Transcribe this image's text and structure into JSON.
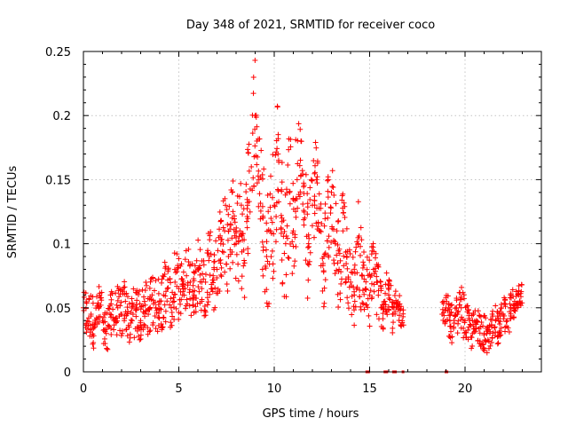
{
  "chart_data": {
    "type": "scatter",
    "title": "Day 348 of 2021, SRMTID for receiver coco",
    "xlabel": "GPS time / hours",
    "ylabel": "SRMTID / TECUs",
    "xlim": [
      0,
      24
    ],
    "ylim": [
      0,
      0.25
    ],
    "x_ticks": [
      0,
      5,
      10,
      15,
      20
    ],
    "x_tick_labels": [
      "0",
      "5",
      "10",
      "15",
      "20"
    ],
    "y_ticks": [
      0,
      0.05,
      0.1,
      0.15,
      0.2,
      0.25
    ],
    "y_tick_labels": [
      "0",
      "0.05",
      "0.1",
      "0.15",
      "0.2",
      "0.25"
    ],
    "grid": true,
    "marker": "plus",
    "color": "#ff0000",
    "series": [
      {
        "name": "SRMTID",
        "x": [
          0.0,
          0.2,
          0.4,
          0.6,
          0.8,
          1.0,
          1.2,
          1.4,
          1.6,
          1.8,
          2.0,
          2.2,
          2.4,
          2.6,
          2.8,
          3.0,
          3.2,
          3.4,
          3.6,
          3.8,
          4.0,
          4.2,
          4.4,
          4.6,
          4.8,
          5.0,
          5.2,
          5.4,
          5.6,
          5.8,
          6.0,
          6.2,
          6.4,
          6.6,
          6.8,
          7.0,
          7.2,
          7.4,
          7.6,
          7.8,
          8.0,
          8.2,
          8.4,
          8.6,
          8.8,
          9.0,
          9.2,
          9.4,
          9.6,
          9.8,
          10.0,
          10.2,
          10.4,
          10.6,
          10.8,
          11.0,
          11.2,
          11.4,
          11.6,
          11.8,
          12.0,
          12.2,
          12.4,
          12.6,
          12.8,
          13.0,
          13.2,
          13.4,
          13.6,
          13.8,
          14.0,
          14.2,
          14.4,
          14.6,
          14.8,
          15.0,
          15.2,
          15.4,
          15.6,
          15.8,
          16.0,
          16.2,
          16.4,
          16.6,
          18.8,
          19.0,
          19.2,
          19.4,
          19.6,
          19.8,
          20.0,
          20.2,
          20.4,
          20.6,
          20.8,
          21.0,
          21.2,
          21.4,
          21.6,
          21.8,
          22.0,
          22.2,
          22.4,
          22.6,
          22.8
        ],
        "y": [
          0.05,
          0.04,
          0.045,
          0.035,
          0.05,
          0.04,
          0.03,
          0.045,
          0.04,
          0.05,
          0.045,
          0.055,
          0.035,
          0.045,
          0.05,
          0.04,
          0.055,
          0.045,
          0.06,
          0.05,
          0.055,
          0.06,
          0.065,
          0.05,
          0.07,
          0.065,
          0.06,
          0.075,
          0.07,
          0.06,
          0.08,
          0.065,
          0.07,
          0.09,
          0.075,
          0.08,
          0.1,
          0.11,
          0.09,
          0.12,
          0.1,
          0.11,
          0.095,
          0.13,
          0.16,
          0.2,
          0.15,
          0.12,
          0.09,
          0.11,
          0.13,
          0.17,
          0.12,
          0.1,
          0.14,
          0.11,
          0.15,
          0.18,
          0.12,
          0.1,
          0.13,
          0.15,
          0.11,
          0.09,
          0.12,
          0.14,
          0.1,
          0.08,
          0.11,
          0.09,
          0.07,
          0.06,
          0.1,
          0.075,
          0.065,
          0.06,
          0.08,
          0.07,
          0.05,
          0.055,
          0.06,
          0.045,
          0.05,
          0.048,
          0.045,
          0.05,
          0.04,
          0.035,
          0.045,
          0.05,
          0.04,
          0.035,
          0.03,
          0.04,
          0.035,
          0.03,
          0.025,
          0.035,
          0.04,
          0.03,
          0.045,
          0.04,
          0.05,
          0.055,
          0.06
        ],
        "spread": [
          0.018,
          0.02,
          0.02,
          0.018,
          0.02,
          0.015,
          0.018,
          0.02,
          0.02,
          0.018,
          0.02,
          0.02,
          0.018,
          0.02,
          0.02,
          0.02,
          0.02,
          0.022,
          0.022,
          0.022,
          0.025,
          0.025,
          0.025,
          0.025,
          0.025,
          0.025,
          0.025,
          0.025,
          0.025,
          0.025,
          0.028,
          0.028,
          0.03,
          0.03,
          0.03,
          0.032,
          0.032,
          0.035,
          0.035,
          0.035,
          0.04,
          0.045,
          0.045,
          0.05,
          0.05,
          0.03,
          0.05,
          0.05,
          0.05,
          0.05,
          0.05,
          0.03,
          0.05,
          0.05,
          0.05,
          0.05,
          0.04,
          0.02,
          0.05,
          0.045,
          0.04,
          0.035,
          0.04,
          0.04,
          0.04,
          0.03,
          0.035,
          0.035,
          0.03,
          0.03,
          0.03,
          0.025,
          0.035,
          0.03,
          0.03,
          0.03,
          0.03,
          0.025,
          0.02,
          0.02,
          0.018,
          0.015,
          0.015,
          0.015,
          0.012,
          0.015,
          0.015,
          0.015,
          0.015,
          0.018,
          0.015,
          0.015,
          0.015,
          0.015,
          0.015,
          0.015,
          0.012,
          0.012,
          0.015,
          0.015,
          0.015,
          0.015,
          0.015,
          0.01,
          0.01
        ]
      }
    ],
    "zero_marks_x": [
      14.85,
      14.95,
      15.8,
      15.9,
      16.25,
      16.35,
      16.75,
      19.0,
      19.05
    ]
  }
}
